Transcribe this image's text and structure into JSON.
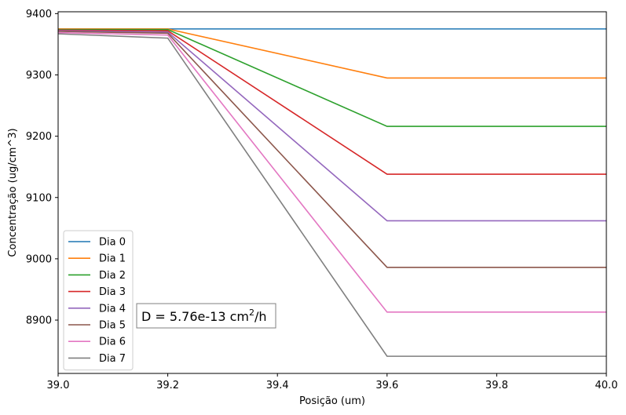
{
  "chart_data": {
    "type": "line",
    "xlabel": "Posição (um)",
    "ylabel": "Concentração (ug/cm^3)",
    "xlim": [
      39.0,
      40.0
    ],
    "ylim": [
      8813,
      9403
    ],
    "xticks": [
      "39.0",
      "39.2",
      "39.4",
      "39.6",
      "39.8",
      "40.0"
    ],
    "yticks": [
      "8900",
      "9000",
      "9100",
      "9200",
      "9300",
      "9400"
    ],
    "grid": false,
    "legend_position": "lower-left",
    "annotation": {
      "text_prefix": "D = 5.76e-13 cm",
      "text_sup": "2",
      "text_suffix": "/h"
    },
    "series": [
      {
        "name": "Dia 0",
        "color": "#1f77b4",
        "x": [
          39.0,
          39.2,
          39.6,
          40.0
        ],
        "y": [
          9375,
          9375,
          9375,
          9375
        ]
      },
      {
        "name": "Dia 1",
        "color": "#ff7f0e",
        "x": [
          39.0,
          39.2,
          39.6,
          40.0
        ],
        "y": [
          9375,
          9375,
          9295,
          9295
        ]
      },
      {
        "name": "Dia 2",
        "color": "#2ca02c",
        "x": [
          39.0,
          39.2,
          39.6,
          40.0
        ],
        "y": [
          9374,
          9374,
          9216,
          9216
        ]
      },
      {
        "name": "Dia 3",
        "color": "#d62728",
        "x": [
          39.0,
          39.2,
          39.6,
          40.0
        ],
        "y": [
          9373,
          9372,
          9138,
          9138
        ]
      },
      {
        "name": "Dia 4",
        "color": "#9467bd",
        "x": [
          39.0,
          39.2,
          39.6,
          40.0
        ],
        "y": [
          9372,
          9370,
          9062,
          9062
        ]
      },
      {
        "name": "Dia 5",
        "color": "#8c564b",
        "x": [
          39.0,
          39.2,
          39.6,
          40.0
        ],
        "y": [
          9371,
          9368,
          8986,
          8986
        ]
      },
      {
        "name": "Dia 6",
        "color": "#e377c2",
        "x": [
          39.0,
          39.2,
          39.6,
          40.0
        ],
        "y": [
          9369,
          9365,
          8913,
          8913
        ]
      },
      {
        "name": "Dia 7",
        "color": "#7f7f7f",
        "x": [
          39.0,
          39.2,
          39.6,
          40.0
        ],
        "y": [
          9367,
          9360,
          8841,
          8841
        ]
      }
    ]
  }
}
